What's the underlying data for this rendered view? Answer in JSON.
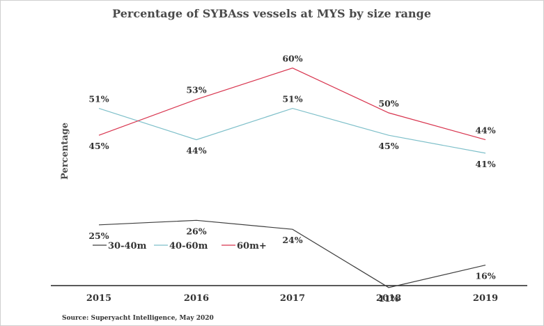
{
  "chart_data": {
    "type": "line",
    "title": "Percentage of SYBAss vessels at MYS by size range",
    "xlabel": "",
    "ylabel": "Percentage",
    "categories": [
      "2015",
      "2016",
      "2017",
      "2018",
      "2019"
    ],
    "ylim": [
      0,
      70
    ],
    "grid": false,
    "legend_position": "bottom-left",
    "series": [
      {
        "name": "30-40m",
        "color": "#3d3d3d",
        "values": [
          25,
          26,
          24,
          11,
          16
        ],
        "labels": [
          "25%",
          "26%",
          "24%",
          "11%",
          "16%"
        ],
        "label_side": [
          "below",
          "below",
          "below",
          "below",
          "below"
        ]
      },
      {
        "name": "40-60m",
        "color": "#7dbfc9",
        "values": [
          51,
          44,
          51,
          45,
          41
        ],
        "labels": [
          "51%",
          "44%",
          "51%",
          "45%",
          "41%"
        ],
        "label_side": [
          "above",
          "below",
          "above",
          "below",
          "below"
        ]
      },
      {
        "name": "60m+",
        "color": "#d8344e",
        "values": [
          45,
          53,
          60,
          50,
          44
        ],
        "labels": [
          "45%",
          "53%",
          "60%",
          "50%",
          "44%"
        ],
        "label_side": [
          "below",
          "above",
          "above",
          "above",
          "above"
        ]
      }
    ],
    "source": "Source: Superyacht Intelligence, May 2020"
  }
}
